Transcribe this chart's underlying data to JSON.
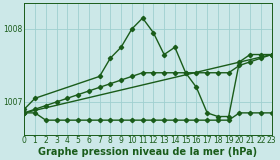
{
  "title": "Graphe pression niveau de la mer (hPa)",
  "background_color": "#cce8e8",
  "grid_color": "#9fcfcf",
  "line_color": "#1a5c1a",
  "xlim": [
    0,
    23
  ],
  "ylim": [
    1006.55,
    1008.35
  ],
  "yticks": [
    1007,
    1008
  ],
  "xticks": [
    0,
    1,
    2,
    3,
    4,
    5,
    6,
    7,
    8,
    9,
    10,
    11,
    12,
    13,
    14,
    15,
    16,
    17,
    18,
    19,
    20,
    21,
    22,
    23
  ],
  "series": [
    {
      "x": [
        0,
        1,
        7,
        8,
        9,
        10,
        11,
        12,
        13,
        14,
        15,
        16,
        17,
        18,
        19,
        20,
        21,
        22,
        23
      ],
      "y": [
        1006.9,
        1007.05,
        1007.35,
        1007.6,
        1007.75,
        1008.0,
        1008.15,
        1007.95,
        1007.65,
        1007.75,
        1007.4,
        1007.2,
        1006.85,
        1006.8,
        1006.8,
        1007.55,
        1007.65,
        1007.65,
        1007.65
      ]
    },
    {
      "x": [
        0,
        1,
        2,
        3,
        4,
        5,
        6,
        7,
        8,
        9,
        10,
        11,
        12,
        13,
        14,
        15,
        16,
        17,
        18,
        19,
        20,
        21,
        22,
        23
      ],
      "y": [
        1006.85,
        1006.85,
        1006.75,
        1006.75,
        1006.75,
        1006.75,
        1006.75,
        1006.75,
        1006.75,
        1006.75,
        1006.75,
        1006.75,
        1006.75,
        1006.75,
        1006.75,
        1006.75,
        1006.75,
        1006.75,
        1006.75,
        1006.75,
        1006.85,
        1006.85,
        1006.85,
        1006.85
      ]
    },
    {
      "x": [
        0,
        23
      ],
      "y": [
        1006.85,
        1007.65
      ]
    },
    {
      "x": [
        0,
        1,
        2,
        3,
        4,
        5,
        6,
        7,
        8,
        9,
        10,
        11,
        12,
        13,
        14,
        15,
        16,
        17,
        18,
        19,
        20,
        21,
        22,
        23
      ],
      "y": [
        1006.85,
        1006.9,
        1006.95,
        1007.0,
        1007.05,
        1007.1,
        1007.15,
        1007.2,
        1007.25,
        1007.3,
        1007.35,
        1007.4,
        1007.4,
        1007.4,
        1007.4,
        1007.4,
        1007.4,
        1007.4,
        1007.4,
        1007.4,
        1007.5,
        1007.55,
        1007.6,
        1007.65
      ]
    }
  ],
  "marker": "D",
  "markersize": 2.2,
  "linewidth": 1.0,
  "tick_fontsize": 5.5,
  "title_fontsize": 7.0,
  "title_fontweight": "bold"
}
